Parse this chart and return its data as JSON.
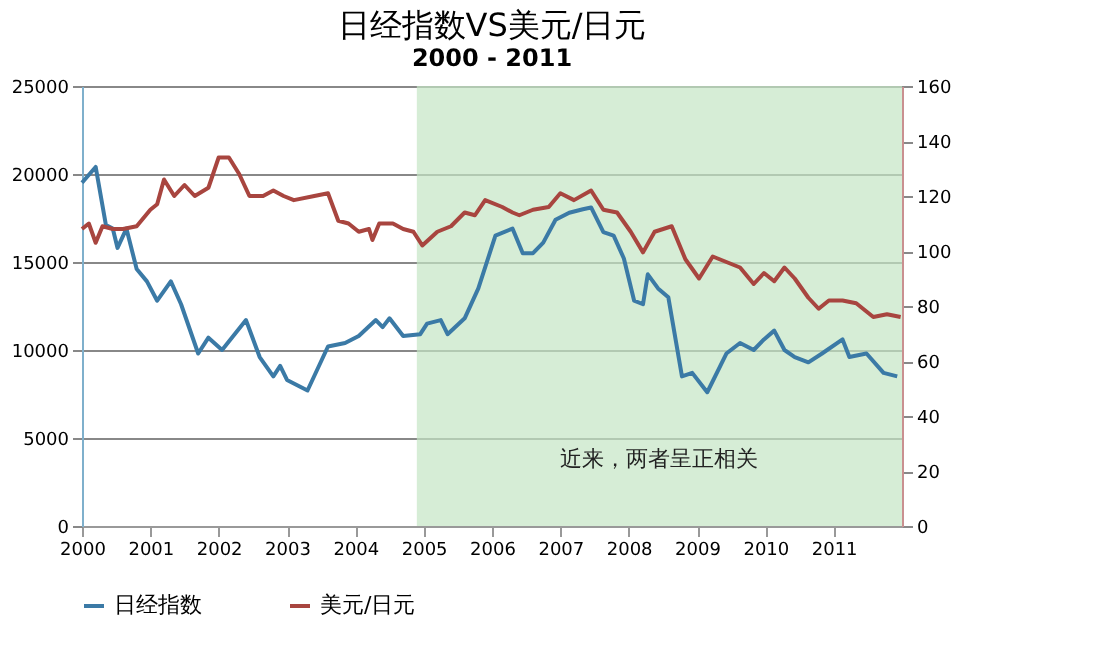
{
  "chart_data": {
    "type": "line",
    "title": "日经指数VS美元/日元",
    "subtitle": "2000 - 2011",
    "xlim": [
      2000,
      2012
    ],
    "xticks": [
      2000,
      2001,
      2002,
      2003,
      2004,
      2005,
      2006,
      2007,
      2008,
      2009,
      2010,
      2011
    ],
    "ylim": [
      0,
      25000
    ],
    "yticks": [
      0,
      5000,
      10000,
      15000,
      20000,
      25000
    ],
    "y2lim": [
      0,
      160
    ],
    "y2ticks": [
      0,
      20,
      40,
      60,
      80,
      100,
      120,
      140,
      160
    ],
    "grid": "y",
    "legend": "bottom",
    "bands": [
      {
        "axis": "x",
        "from": 2004.9,
        "to": 2012,
        "color": "#c5e5c5"
      }
    ],
    "annotations": [
      "近来，两者呈正相关"
    ],
    "series": [
      {
        "name": "日经指数",
        "color": "#3b7aa6",
        "axis": "y",
        "x": [
          2000,
          2000.2,
          2000.35,
          2000.45,
          2000.52,
          2000.65,
          2000.8,
          2000.95,
          2001.1,
          2001.3,
          2001.45,
          2001.7,
          2001.85,
          2002.05,
          2002.4,
          2002.6,
          2002.8,
          2002.9,
          2003.0,
          2003.3,
          2003.6,
          2003.85,
          2004.05,
          2004.3,
          2004.4,
          2004.5,
          2004.7,
          2004.95,
          2005.05,
          2005.25,
          2005.35,
          2005.6,
          2005.8,
          2006.05,
          2006.3,
          2006.45,
          2006.6,
          2006.75,
          2006.93,
          2007.13,
          2007.33,
          2007.45,
          2007.63,
          2007.78,
          2007.93,
          2008.08,
          2008.21,
          2008.28,
          2008.43,
          2008.58,
          2008.78,
          2008.93,
          2009.15,
          2009.43,
          2009.63,
          2009.83,
          2009.98,
          2010.13,
          2010.28,
          2010.43,
          2010.63,
          2010.83,
          2011.13,
          2011.23,
          2011.48,
          2011.73,
          2011.93
        ],
        "values": [
          19500,
          20400,
          17100,
          16900,
          15800,
          16900,
          14600,
          13900,
          12800,
          13900,
          12600,
          9800,
          10700,
          10000,
          11700,
          9600,
          8500,
          9100,
          8300,
          7700,
          10200,
          10400,
          10800,
          11700,
          11300,
          11800,
          10800,
          10900,
          11500,
          11700,
          10900,
          11800,
          13500,
          16500,
          16900,
          15500,
          15500,
          16100,
          17400,
          17800,
          18000,
          18100,
          16700,
          16500,
          15200,
          12800,
          12600,
          14300,
          13500,
          13000,
          8500,
          8700,
          7600,
          9800,
          10400,
          10000,
          10600,
          11100,
          10000,
          9600,
          9300,
          9800,
          10600,
          9600,
          9800,
          8700,
          8500
        ]
      },
      {
        "name": "美元/日元",
        "color": "#a8453f",
        "axis": "y2",
        "x": [
          2000,
          2000.1,
          2000.2,
          2000.3,
          2000.45,
          2000.6,
          2000.8,
          2001.0,
          2001.1,
          2001.2,
          2001.35,
          2001.5,
          2001.65,
          2001.85,
          2002.0,
          2002.15,
          2002.3,
          2002.45,
          2002.65,
          2002.8,
          2002.95,
          2003.1,
          2003.4,
          2003.6,
          2003.75,
          2003.9,
          2004.05,
          2004.2,
          2004.25,
          2004.35,
          2004.55,
          2004.7,
          2004.85,
          2004.98,
          2005.2,
          2005.4,
          2005.6,
          2005.75,
          2005.9,
          2006.15,
          2006.3,
          2006.4,
          2006.6,
          2006.83,
          2007.0,
          2007.2,
          2007.45,
          2007.63,
          2007.83,
          2008.03,
          2008.21,
          2008.38,
          2008.63,
          2008.83,
          2009.03,
          2009.23,
          2009.43,
          2009.63,
          2009.83,
          2009.98,
          2010.13,
          2010.28,
          2010.43,
          2010.63,
          2010.78,
          2010.93,
          2011.13,
          2011.33,
          2011.58,
          2011.78,
          2011.98
        ],
        "values": [
          108,
          110,
          103,
          109,
          108,
          108,
          109,
          115,
          117,
          126,
          120,
          124,
          120,
          123,
          134,
          134,
          128,
          120,
          120,
          122,
          120,
          118.5,
          120,
          121,
          111,
          110,
          107,
          108,
          104,
          110,
          110,
          108,
          107,
          102,
          107,
          109,
          114,
          113,
          118.5,
          116,
          114,
          113,
          115,
          116,
          121,
          118.5,
          122,
          115,
          114,
          107,
          99.5,
          107,
          109,
          97,
          90,
          98,
          96,
          94,
          88,
          92,
          89,
          94,
          90,
          83,
          79,
          82,
          82,
          81,
          76,
          77,
          76
        ]
      }
    ]
  }
}
